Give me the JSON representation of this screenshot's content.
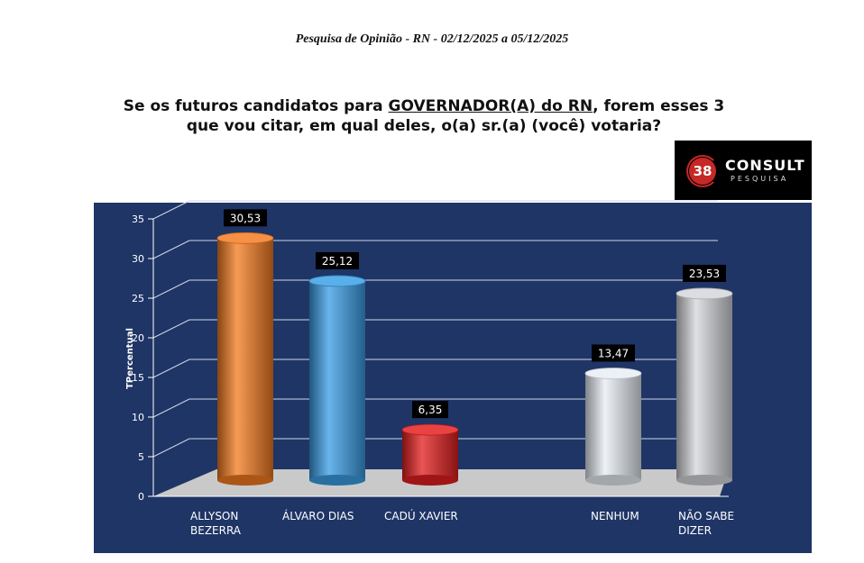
{
  "header": {
    "title": "Pesquisa de Opinião -   RN  - 02/12/2025   a  05/12/2025"
  },
  "question": {
    "part1": "Se os futuros candidatos para ",
    "highlight": "GOVERNADOR(A) do RN",
    "part2": ", forem esses 3 que vou citar, em qual deles, o(a) sr.(a) (você) votaria?"
  },
  "logo": {
    "number": "38",
    "name": "CONSULT",
    "sub": "PESQUISA",
    "accent": "#c62828"
  },
  "chart_data": {
    "type": "bar",
    "ylabel": "TPercentual",
    "ylim": [
      0,
      35
    ],
    "yticks": [
      0,
      5,
      10,
      15,
      20,
      25,
      30,
      35
    ],
    "grid": true,
    "bars": [
      {
        "label_lines": [
          "ALLYSON",
          "BEZERRA"
        ],
        "value": 30.53,
        "value_label": "30,53",
        "color": "#f47b20"
      },
      {
        "label_lines": [
          "ÁLVARO DIAS"
        ],
        "value": 25.12,
        "value_label": "25,12",
        "color": "#3a9ee6"
      },
      {
        "label_lines": [
          "CADÚ XAVIER"
        ],
        "value": 6.35,
        "value_label": "6,35",
        "color": "#e41e1e"
      },
      {
        "label_lines": [
          "NENHUM"
        ],
        "value": 13.47,
        "value_label": "13,47",
        "color": "#e8eef5"
      },
      {
        "label_lines": [
          "NÃO SABE",
          "DIZER"
        ],
        "value": 23.53,
        "value_label": "23,53",
        "color": "#d4d6da"
      }
    ],
    "panel_color": "#1f3566"
  }
}
